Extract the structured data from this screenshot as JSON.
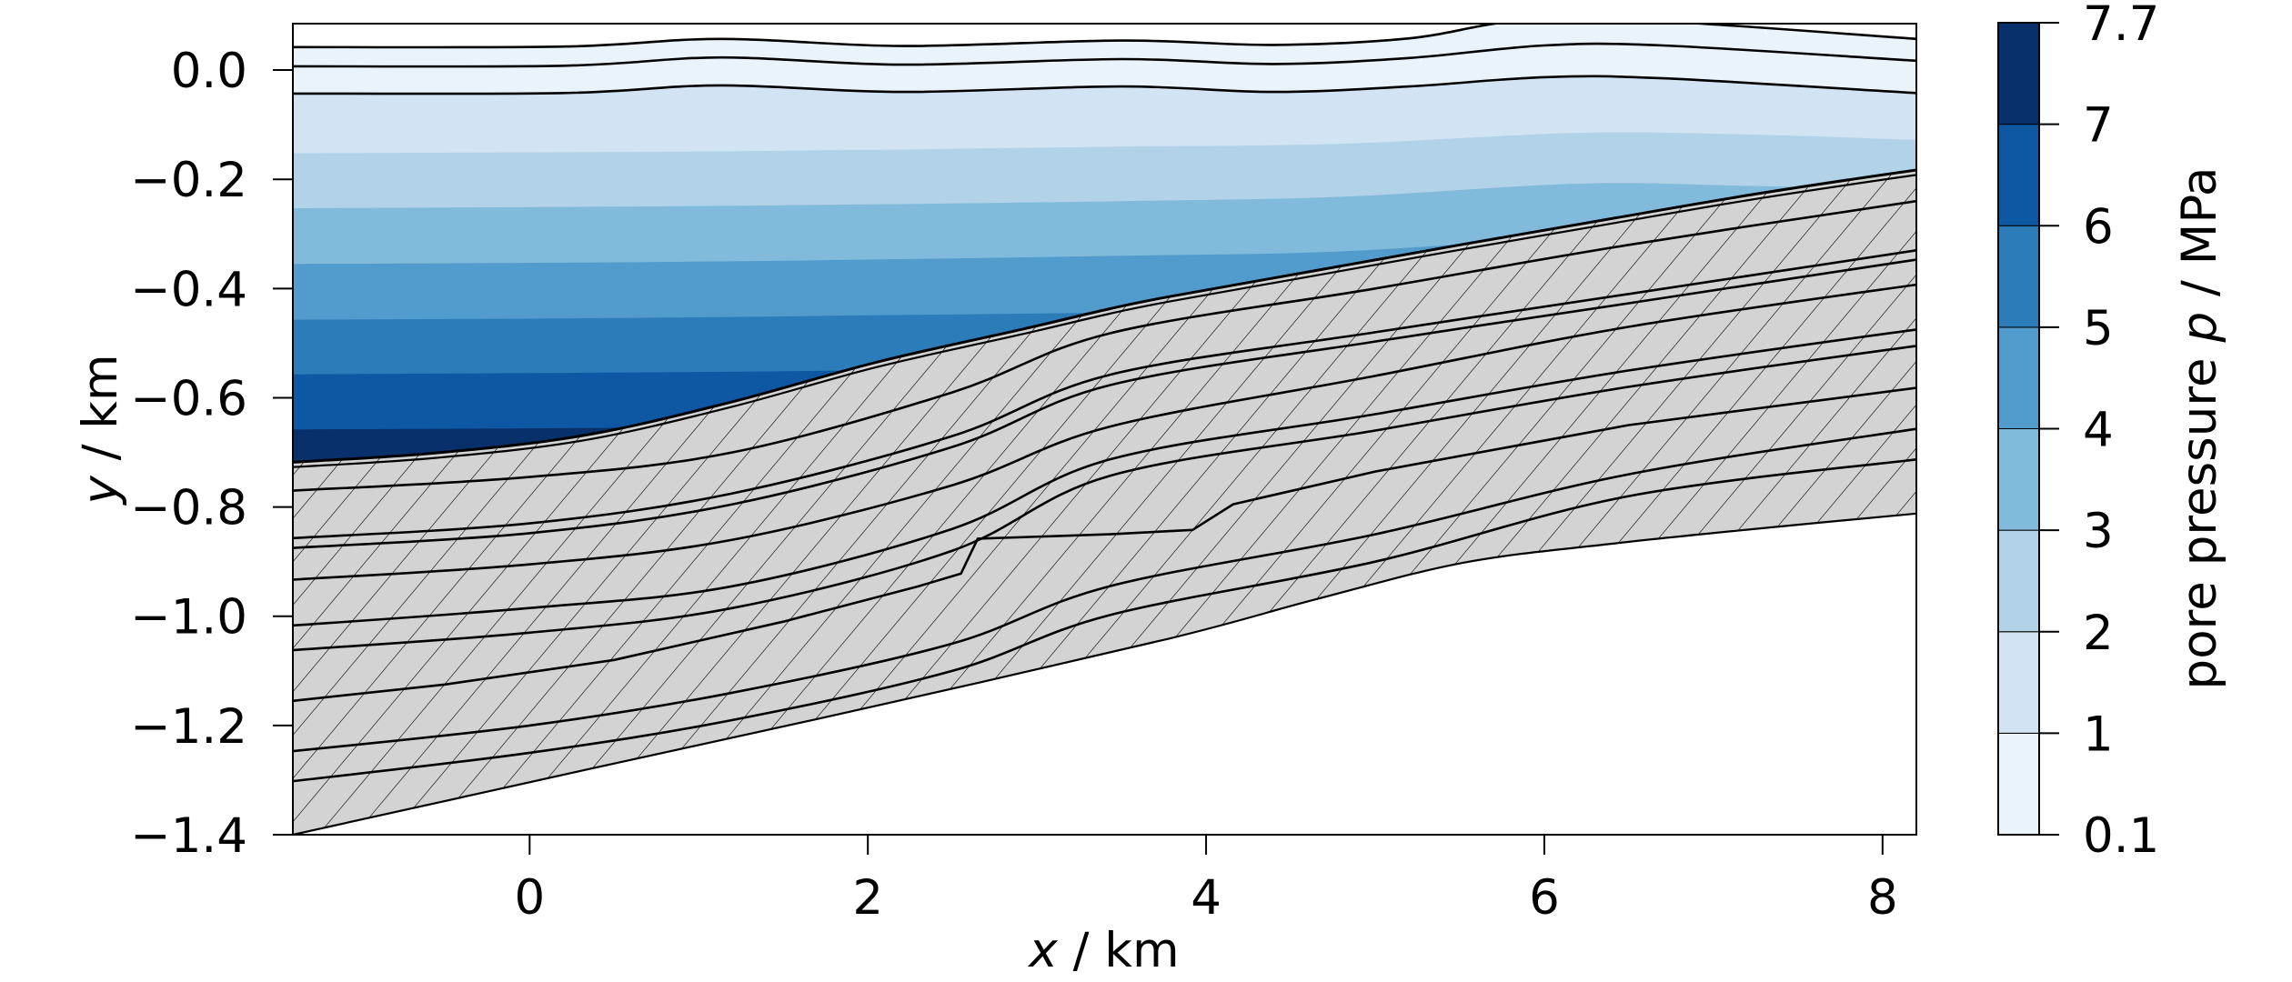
{
  "chart_data": {
    "type": "contour",
    "title": "",
    "xlabel": "x / km",
    "xlabel_parts": [
      {
        "text": "x",
        "italic": true
      },
      {
        "text": " / km",
        "italic": false
      }
    ],
    "ylabel": "y / km",
    "ylabel_parts": [
      {
        "text": "y",
        "italic": true
      },
      {
        "text": " / km",
        "italic": false
      }
    ],
    "xlim": [
      -1.4,
      8.2
    ],
    "ylim": [
      -1.4,
      0.085
    ],
    "xticks": [
      0,
      2,
      4,
      6,
      8
    ],
    "xtick_labels": [
      "0",
      "2",
      "4",
      "6",
      "8"
    ],
    "yticks": [
      0.0,
      -0.2,
      -0.4,
      -0.6,
      -0.8,
      -1.0,
      -1.2,
      -1.4
    ],
    "ytick_labels": [
      "0.0",
      "−0.2",
      "−0.4",
      "−0.6",
      "−0.8",
      "−1.0",
      "−1.2",
      "−1.4"
    ],
    "grid": false,
    "colorbar": {
      "label": "pore pressure p / MPa",
      "label_parts": [
        {
          "text": "pore pressure ",
          "italic": false
        },
        {
          "text": "p",
          "italic": true
        },
        {
          "text": " / MPa",
          "italic": false
        }
      ],
      "levels": [
        0.1,
        1,
        2,
        3,
        4,
        5,
        6,
        7,
        7.7
      ],
      "tick_labels": [
        "0.1",
        "1",
        "2",
        "3",
        "4",
        "5",
        "6",
        "7",
        "7.7"
      ],
      "colors": [
        "#eaf2fa",
        "#d2e3f3",
        "#b2d2e8",
        "#82badb",
        "#519ccc",
        "#2c7cba",
        "#0e58a3",
        "#08306b"
      ],
      "position": "right"
    },
    "pressure_bands": [
      {
        "range": "0.1-1 MPa",
        "color": "#eaf2fa"
      },
      {
        "range": "1-2 MPa",
        "color": "#d2e3f3"
      },
      {
        "range": "2-3 MPa",
        "color": "#b2d2e8"
      },
      {
        "range": "3-4 MPa",
        "color": "#82badb"
      },
      {
        "range": "4-5 MPa",
        "color": "#519ccc"
      },
      {
        "range": "5-6 MPa",
        "color": "#2c7cba"
      },
      {
        "range": "6-7 MPa",
        "color": "#0e58a3"
      },
      {
        "range": "7-7.7 MPa",
        "color": "#08306b"
      }
    ],
    "pressure_contours": [
      {
        "level": 1,
        "fill_above": "#d2e3f3",
        "points": [
          [
            -1.4,
            -0.152
          ],
          [
            0.5,
            -0.15
          ],
          [
            2.0,
            -0.146
          ],
          [
            3.5,
            -0.14
          ],
          [
            4.8,
            -0.135
          ],
          [
            6.2,
            -0.115
          ],
          [
            7.2,
            -0.118
          ],
          [
            8.2,
            -0.128
          ]
        ]
      },
      {
        "level": 2,
        "fill_above": "#b2d2e8",
        "points": [
          [
            -1.4,
            -0.253
          ],
          [
            0.5,
            -0.25
          ],
          [
            2.0,
            -0.246
          ],
          [
            3.5,
            -0.24
          ],
          [
            4.8,
            -0.232
          ],
          [
            6.2,
            -0.208
          ],
          [
            7.2,
            -0.212
          ],
          [
            8.2,
            -0.22
          ]
        ]
      },
      {
        "level": 3,
        "fill_above": "#82badb",
        "points": [
          [
            -1.4,
            -0.355
          ],
          [
            0.5,
            -0.352
          ],
          [
            2.0,
            -0.347
          ],
          [
            3.5,
            -0.34
          ],
          [
            4.8,
            -0.332
          ],
          [
            6.2,
            -0.305
          ],
          [
            7.2,
            -0.3
          ],
          [
            8.2,
            -0.3
          ]
        ]
      },
      {
        "level": 4,
        "fill_above": "#519ccc",
        "points": [
          [
            -1.4,
            -0.457
          ],
          [
            0.5,
            -0.454
          ],
          [
            2.0,
            -0.449
          ],
          [
            3.5,
            -0.443
          ],
          [
            4.8,
            -0.43
          ],
          [
            6.2,
            -0.41
          ],
          [
            8.2,
            -0.4
          ]
        ]
      },
      {
        "level": 5,
        "fill_above": "#2c7cba",
        "points": [
          [
            -1.4,
            -0.557
          ],
          [
            0.5,
            -0.554
          ],
          [
            2.0,
            -0.55
          ],
          [
            3.5,
            -0.545
          ],
          [
            4.8,
            -0.54
          ],
          [
            8.2,
            -0.53
          ]
        ]
      },
      {
        "level": 6,
        "fill_above": "#0e58a3",
        "points": [
          [
            -1.4,
            -0.658
          ],
          [
            0.5,
            -0.655
          ],
          [
            2.0,
            -0.65
          ],
          [
            3.5,
            -0.645
          ],
          [
            8.2,
            -0.64
          ]
        ]
      }
    ],
    "deep_fill_color": "#08306b",
    "surface_lines": [
      {
        "name": "surface-line-1",
        "fill_above": "#ffffff",
        "points": [
          [
            -1.4,
            0.042
          ],
          [
            0.2,
            0.043
          ],
          [
            1.13,
            0.057
          ],
          [
            2.2,
            0.044
          ],
          [
            3.5,
            0.054
          ],
          [
            4.4,
            0.046
          ],
          [
            5.2,
            0.058
          ],
          [
            5.85,
            0.09
          ],
          [
            6.65,
            0.09
          ],
          [
            8.2,
            0.057
          ]
        ]
      },
      {
        "name": "surface-line-2",
        "fill_above": null,
        "points": [
          [
            -1.4,
            0.007
          ],
          [
            0.2,
            0.008
          ],
          [
            1.13,
            0.023
          ],
          [
            2.2,
            0.01
          ],
          [
            3.5,
            0.02
          ],
          [
            4.4,
            0.011
          ],
          [
            5.2,
            0.022
          ],
          [
            6.0,
            0.045
          ],
          [
            6.7,
            0.045
          ],
          [
            8.2,
            0.017
          ]
        ]
      },
      {
        "name": "surface-line-3",
        "fill_above": "#eaf2fa",
        "points": [
          [
            -1.4,
            -0.043
          ],
          [
            0.2,
            -0.042
          ],
          [
            1.13,
            -0.028
          ],
          [
            2.2,
            -0.04
          ],
          [
            3.5,
            -0.03
          ],
          [
            4.4,
            -0.04
          ],
          [
            5.2,
            -0.03
          ],
          [
            6.0,
            -0.013
          ],
          [
            6.7,
            -0.015
          ],
          [
            8.2,
            -0.042
          ]
        ]
      }
    ],
    "reservoir_top": {
      "points": [
        [
          -1.4,
          -0.718
        ],
        [
          -0.55,
          -0.701
        ],
        [
          0.32,
          -0.669
        ],
        [
          1.19,
          -0.608
        ],
        [
          2.05,
          -0.535
        ],
        [
          2.92,
          -0.474
        ],
        [
          3.43,
          -0.437
        ],
        [
          3.78,
          -0.415
        ],
        [
          4.65,
          -0.367
        ],
        [
          5.52,
          -0.319
        ],
        [
          6.38,
          -0.273
        ],
        [
          7.25,
          -0.227
        ],
        [
          8.2,
          -0.183
        ]
      ],
      "double_line_offset": -0.009
    },
    "hatched_region": {
      "fill": "#d3d3d3",
      "hatch": "/",
      "hatch_spacing_px": 40
    },
    "layer_lines": [
      {
        "name": "layer-line-1",
        "smooth": true,
        "points": [
          [
            -1.4,
            -0.77
          ],
          [
            0,
            -0.745
          ],
          [
            1.2,
            -0.7
          ],
          [
            2.5,
            -0.59
          ],
          [
            3.43,
            -0.482
          ],
          [
            5.0,
            -0.4
          ],
          [
            6.5,
            -0.32
          ],
          [
            8.2,
            -0.24
          ]
        ]
      },
      {
        "name": "layer-line-2",
        "smooth": true,
        "points": [
          [
            -1.4,
            -0.857
          ],
          [
            0,
            -0.83
          ],
          [
            1.2,
            -0.775
          ],
          [
            2.5,
            -0.67
          ],
          [
            3.43,
            -0.558
          ],
          [
            5.0,
            -0.48
          ],
          [
            6.5,
            -0.41
          ],
          [
            8.2,
            -0.33
          ]
        ]
      },
      {
        "name": "layer-line-3",
        "smooth": true,
        "points": [
          [
            -1.4,
            -0.875
          ],
          [
            0,
            -0.848
          ],
          [
            1.2,
            -0.795
          ],
          [
            2.5,
            -0.69
          ],
          [
            3.43,
            -0.577
          ],
          [
            5.0,
            -0.497
          ],
          [
            6.5,
            -0.427
          ],
          [
            8.2,
            -0.347
          ]
        ]
      },
      {
        "name": "layer-line-4",
        "smooth": true,
        "points": [
          [
            -1.4,
            -0.933
          ],
          [
            0,
            -0.905
          ],
          [
            1.2,
            -0.86
          ],
          [
            2.5,
            -0.76
          ],
          [
            3.43,
            -0.653
          ],
          [
            5.0,
            -0.56
          ],
          [
            6.5,
            -0.47
          ],
          [
            8.2,
            -0.393
          ]
        ]
      },
      {
        "name": "layer-line-5",
        "smooth": true,
        "points": [
          [
            -1.4,
            -1.017
          ],
          [
            0,
            -0.985
          ],
          [
            1.2,
            -0.945
          ],
          [
            2.5,
            -0.84
          ],
          [
            3.43,
            -0.713
          ],
          [
            5.0,
            -0.63
          ],
          [
            6.5,
            -0.55
          ],
          [
            8.2,
            -0.475
          ]
        ]
      },
      {
        "name": "layer-line-6",
        "smooth": true,
        "points": [
          [
            -1.4,
            -1.062
          ],
          [
            0,
            -1.03
          ],
          [
            1.2,
            -0.985
          ],
          [
            2.5,
            -0.88
          ],
          [
            3.43,
            -0.743
          ],
          [
            5.0,
            -0.66
          ],
          [
            6.5,
            -0.58
          ],
          [
            8.2,
            -0.505
          ]
        ]
      },
      {
        "name": "layer-line-7-faulted",
        "smooth": false,
        "points": [
          [
            -1.4,
            -1.155
          ],
          [
            -0.5,
            -1.125
          ],
          [
            0.5,
            -1.08
          ],
          [
            1.5,
            -1.01
          ],
          [
            2.3,
            -0.945
          ],
          [
            2.55,
            -0.922
          ],
          [
            2.65,
            -0.858
          ],
          [
            3.43,
            -0.85
          ],
          [
            3.92,
            -0.842
          ],
          [
            4.16,
            -0.795
          ],
          [
            5.0,
            -0.735
          ],
          [
            6.5,
            -0.65
          ],
          [
            8.2,
            -0.582
          ]
        ]
      },
      {
        "name": "layer-line-8",
        "smooth": true,
        "points": [
          [
            -1.4,
            -1.247
          ],
          [
            0,
            -1.2
          ],
          [
            1.2,
            -1.14
          ],
          [
            2.5,
            -1.05
          ],
          [
            3.43,
            -0.945
          ],
          [
            5.0,
            -0.85
          ],
          [
            6.5,
            -0.74
          ],
          [
            8.2,
            -0.657
          ]
        ]
      },
      {
        "name": "layer-line-9",
        "smooth": true,
        "points": [
          [
            -1.4,
            -1.302
          ],
          [
            0,
            -1.25
          ],
          [
            1.2,
            -1.19
          ],
          [
            2.5,
            -1.1
          ],
          [
            3.43,
            -0.998
          ],
          [
            5.0,
            -0.9
          ],
          [
            6.5,
            -0.78
          ],
          [
            8.2,
            -0.713
          ]
        ]
      }
    ],
    "bottom_boundary": {
      "points": [
        [
          -1.4,
          -1.4
        ],
        [
          0.32,
          -1.282
        ],
        [
          2.05,
          -1.164
        ],
        [
          3.78,
          -1.041
        ],
        [
          4.65,
          -0.969
        ],
        [
          5.52,
          -0.902
        ],
        [
          6.38,
          -0.868
        ],
        [
          7.25,
          -0.84
        ],
        [
          8.2,
          -0.812
        ]
      ]
    }
  }
}
